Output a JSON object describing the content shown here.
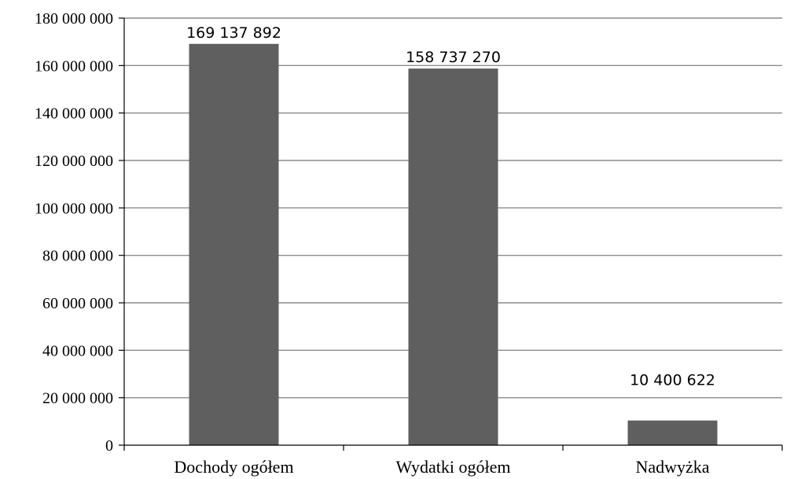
{
  "chart_data": {
    "type": "bar",
    "categories": [
      "Dochody ogółem",
      "Wydatki ogółem",
      "Nadwyżka"
    ],
    "values": [
      169137892,
      158737270,
      10400622
    ],
    "data_labels": [
      "169 137 892",
      "158 737 270",
      "10 400 622"
    ],
    "ylim": [
      0,
      180000000
    ],
    "yticks": [
      0,
      20000000,
      40000000,
      60000000,
      80000000,
      100000000,
      120000000,
      140000000,
      160000000,
      180000000
    ],
    "ytick_labels": [
      "0",
      "20 000 000",
      "40 000 000",
      "60 000 000",
      "80 000 000",
      "100 000 000",
      "120 000 000",
      "140 000 000",
      "160 000 000",
      "180 000 000"
    ],
    "grid": true,
    "legend": "none",
    "colors": {
      "bar": "#5f5f5f",
      "grid": "#8c8c8c",
      "axis": "#000000"
    }
  }
}
